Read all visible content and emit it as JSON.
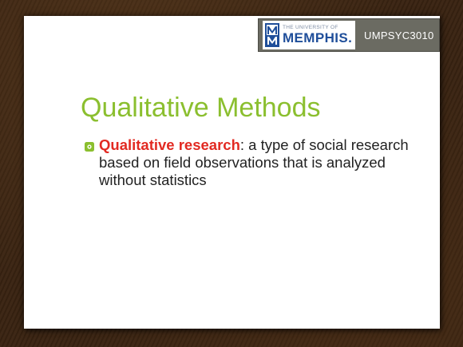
{
  "header": {
    "logo": {
      "small_text": "THE UNIVERSITY OF",
      "big_text": "MEMPHIS.",
      "mark_letter": "M"
    },
    "course_code": "UMPSYC3010"
  },
  "slide": {
    "title": "Qualitative Methods",
    "bullets": [
      {
        "term": "Qualitative research",
        "definition": ": a type of social research based on field observations that is analyzed without statistics"
      }
    ]
  },
  "colors": {
    "title": "#8bbf2f",
    "term": "#e22a22",
    "bullet": "#8bbf2f",
    "logo_blue": "#1f4e9a",
    "header_bg": "#6b6b62",
    "background_wood": "#3a2412"
  },
  "icons": {
    "bullet": "hollow-square-flower-icon",
    "logo": "memphis-m-logo-icon"
  }
}
